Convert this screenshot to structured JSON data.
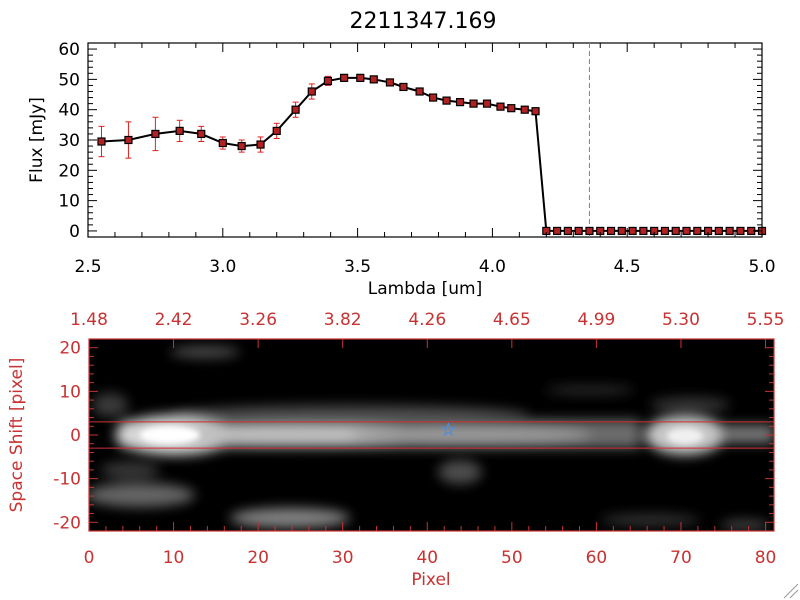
{
  "chart_data": [
    {
      "type": "line",
      "title": "2211347.169",
      "xlabel": "Lambda [um]",
      "ylabel": "Flux [mJy]",
      "xlim": [
        2.5,
        5.0
      ],
      "ylim": [
        -2,
        62
      ],
      "xticks": [
        "2.5",
        "3.0",
        "3.5",
        "4.0",
        "4.5",
        "5.0"
      ],
      "xtick_values": [
        2.5,
        3.0,
        3.5,
        4.0,
        4.5,
        5.0
      ],
      "yticks": [
        "0",
        "10",
        "20",
        "30",
        "40",
        "50",
        "60"
      ],
      "ytick_values": [
        0,
        10,
        20,
        30,
        40,
        50,
        60
      ],
      "reference_line_x": 4.36,
      "colors": {
        "line": "#000000",
        "marker": "#b22222",
        "errorbar": "#e02020",
        "refline": "#4a90e2"
      },
      "series": [
        {
          "x": [
            2.55,
            2.65,
            2.75,
            2.84,
            2.92,
            3.0,
            3.07,
            3.14,
            3.2,
            3.27,
            3.33,
            3.39,
            3.45,
            3.51,
            3.56,
            3.62,
            3.67,
            3.73,
            3.78,
            3.83,
            3.88,
            3.93,
            3.98,
            4.03,
            4.07,
            4.12,
            4.16,
            4.2,
            4.24,
            4.28,
            4.32,
            4.36,
            4.4,
            4.44,
            4.48,
            4.52,
            4.56,
            4.6,
            4.64,
            4.68,
            4.72,
            4.76,
            4.8,
            4.84,
            4.88,
            4.92,
            4.96,
            5.0
          ],
          "y": [
            29.5,
            30,
            32,
            33,
            32,
            29,
            28,
            28.5,
            33,
            40,
            46,
            49.5,
            50.5,
            50.5,
            50,
            49,
            47.5,
            46,
            44,
            43,
            42.5,
            42,
            42,
            41,
            40.5,
            40,
            39.5,
            0,
            0,
            0,
            0,
            0,
            0,
            0,
            0,
            0,
            0,
            0,
            0,
            0,
            0,
            0,
            0,
            0,
            0,
            0,
            0,
            0
          ],
          "yerr": [
            5,
            6,
            5.5,
            3.5,
            2.5,
            2,
            2,
            2.5,
            2.5,
            2.5,
            2.5,
            1.5,
            1,
            1,
            1,
            1,
            1,
            1,
            1,
            1,
            1,
            1,
            1,
            1,
            1,
            1,
            1,
            0,
            0,
            0,
            0,
            0,
            0,
            0,
            0,
            0,
            0,
            0,
            0,
            0,
            0,
            0,
            0,
            0,
            0,
            0,
            0,
            0
          ]
        }
      ]
    },
    {
      "type": "heatmap",
      "xlabel": "Pixel",
      "ylabel": "Space Shift [pixel]",
      "xlim": [
        0,
        81
      ],
      "ylim": [
        -22,
        22
      ],
      "xticks": [
        "0",
        "10",
        "20",
        "30",
        "40",
        "50",
        "60",
        "70",
        "80"
      ],
      "xtick_values": [
        0,
        10,
        20,
        30,
        40,
        50,
        60,
        70,
        80
      ],
      "yticks": [
        "-20",
        "-10",
        "0",
        "10",
        "20"
      ],
      "ytick_values": [
        -20,
        -10,
        0,
        10,
        20
      ],
      "top_axis_labels": [
        "1.48",
        "2.42",
        "3.26",
        "3.82",
        "4.26",
        "4.65",
        "4.99",
        "5.30",
        "5.55"
      ],
      "aperture_lines_y": [
        3,
        -3
      ],
      "star_marker": {
        "pixel": 42.5,
        "shift": 1.2
      },
      "colors": {
        "axis": "#c83232",
        "aperture": "#d03030",
        "star": "#4a90e2"
      }
    }
  ]
}
